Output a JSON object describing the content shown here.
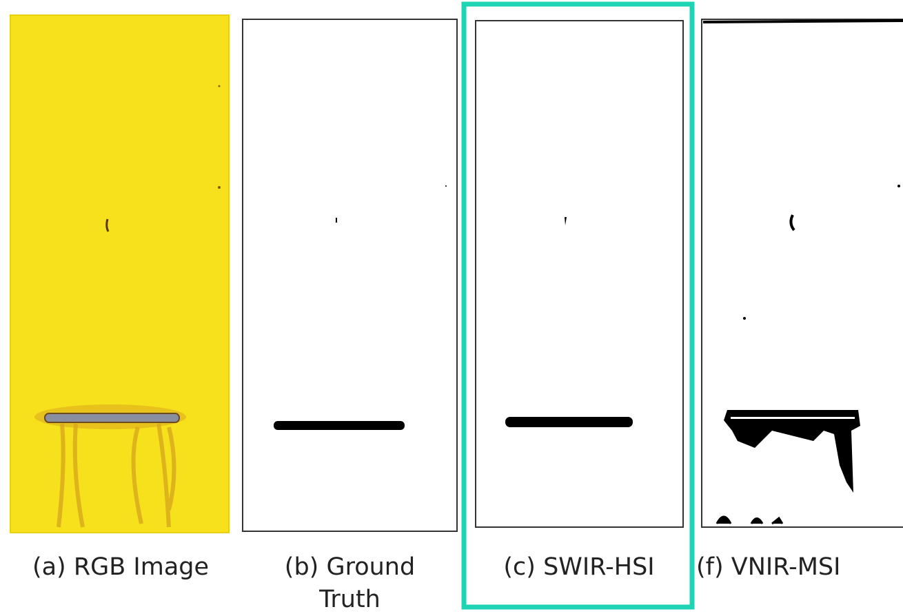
{
  "panels": [
    {
      "caption": "(a) RGB Image"
    },
    {
      "caption": "(b) Ground Truth"
    },
    {
      "caption": "(c) SWIR-HSI"
    },
    {
      "caption": "(f) VNIR-MSI"
    }
  ]
}
